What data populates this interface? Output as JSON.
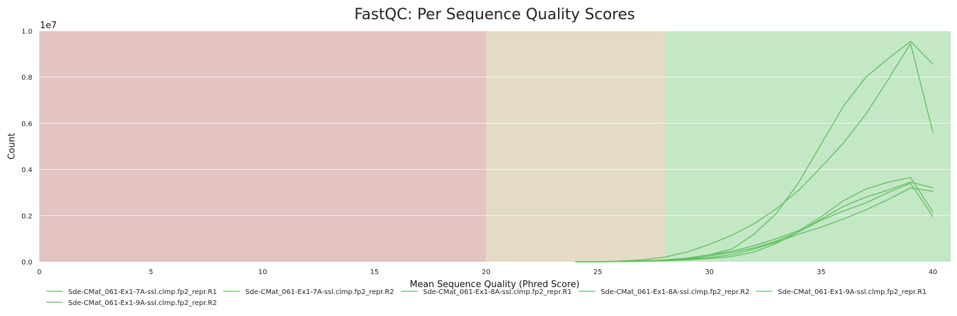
{
  "chart_data": {
    "type": "line",
    "title": "FastQC: Per Sequence Quality Scores",
    "xlabel": "Mean Sequence Quality (Phred Score)",
    "ylabel": "Count",
    "y_scale_label": "1e7",
    "xlim": [
      0,
      40.8
    ],
    "ylim": [
      0,
      1.0
    ],
    "x_ticks": [
      0,
      5,
      10,
      15,
      20,
      25,
      30,
      35,
      40
    ],
    "x_tick_labels": [
      "0",
      "5",
      "10",
      "15",
      "20",
      "25",
      "30",
      "35",
      "40"
    ],
    "y_ticks": [
      0,
      0.2,
      0.4,
      0.6,
      0.8,
      1.0
    ],
    "y_tick_labels": [
      "0.0",
      "0.2",
      "0.4",
      "0.6",
      "0.8",
      "1.0"
    ],
    "grid": "horizontal",
    "legend_position": "bottom",
    "zones": [
      {
        "from": 0,
        "to": 20,
        "color": "#e4c3c3"
      },
      {
        "from": 20,
        "to": 28,
        "color": "#e4dbc6"
      },
      {
        "from": 28,
        "to": 40.8,
        "color": "#c4e7c6"
      }
    ],
    "line_color": "#5cbf5c",
    "x": [
      24,
      25,
      26,
      27,
      28,
      29,
      30,
      31,
      32,
      33,
      34,
      35,
      36,
      37,
      38,
      39,
      40
    ],
    "series": [
      {
        "name": "Sde-CMat_061-Ex1-7A-ssl.clmp.fp2_repr.R1",
        "values": [
          0,
          0,
          0.001,
          0.003,
          0.007,
          0.016,
          0.03,
          0.055,
          0.12,
          0.21,
          0.345,
          0.51,
          0.675,
          0.8,
          0.88,
          0.955,
          0.855
        ]
      },
      {
        "name": "Sde-CMat_061-Ex1-7A-ssl.clmp.fp2_repr.R2",
        "values": [
          0,
          0,
          0.003,
          0.008,
          0.02,
          0.042,
          0.075,
          0.115,
          0.165,
          0.23,
          0.31,
          0.41,
          0.515,
          0.64,
          0.79,
          0.945,
          0.56
        ]
      },
      {
        "name": "Sde-CMat_061-Ex1-8A-ssl.clmp.fp2_repr.R1",
        "values": [
          0,
          0,
          0.001,
          0.003,
          0.008,
          0.015,
          0.03,
          0.045,
          0.07,
          0.1,
          0.135,
          0.195,
          0.265,
          0.315,
          0.345,
          0.365,
          0.215
        ]
      },
      {
        "name": "Sde-CMat_061-Ex1-8A-ssl.clmp.fp2_repr.R2",
        "values": [
          0,
          0,
          0.001,
          0.002,
          0.006,
          0.012,
          0.025,
          0.04,
          0.06,
          0.09,
          0.13,
          0.185,
          0.24,
          0.28,
          0.31,
          0.345,
          0.32
        ]
      },
      {
        "name": "Sde-CMat_061-Ex1-9A-ssl.clmp.fp2_repr.R1",
        "values": [
          0,
          0,
          0.001,
          0.002,
          0.004,
          0.008,
          0.014,
          0.022,
          0.043,
          0.08,
          0.13,
          0.18,
          0.22,
          0.255,
          0.3,
          0.34,
          0.195
        ]
      },
      {
        "name": "Sde-CMat_061-Ex1-9A-ssl.clmp.fp2_repr.R2",
        "values": [
          0,
          0,
          0.001,
          0.002,
          0.005,
          0.01,
          0.018,
          0.03,
          0.055,
          0.085,
          0.12,
          0.15,
          0.185,
          0.225,
          0.27,
          0.32,
          0.305
        ]
      }
    ]
  }
}
